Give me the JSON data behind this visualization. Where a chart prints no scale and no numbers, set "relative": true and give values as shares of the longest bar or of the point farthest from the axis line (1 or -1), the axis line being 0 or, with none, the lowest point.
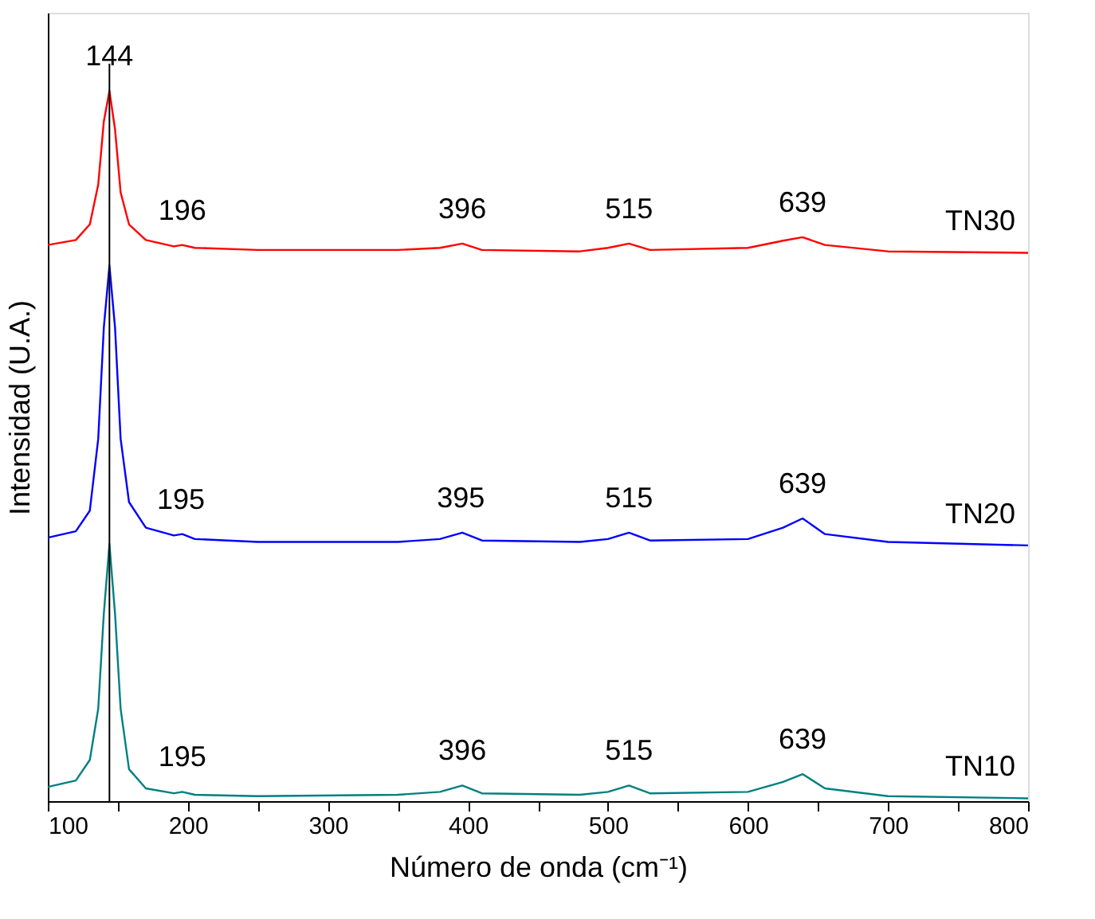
{
  "chart_data": {
    "type": "line",
    "relative": true,
    "xlabel": "Número de onda (cm⁻¹)",
    "ylabel": "Intensidad (U.A.)",
    "xlim": [
      100,
      800
    ],
    "xticks": [
      100,
      {
        "value": 150,
        "label": null
      },
      200,
      {
        "value": 250,
        "label": null
      },
      300,
      {
        "value": 350,
        "label": null
      },
      400,
      {
        "value": 450,
        "label": null
      },
      500,
      {
        "value": 550,
        "label": null
      },
      600,
      {
        "value": 650,
        "label": null
      },
      700,
      {
        "value": 750,
        "label": null
      },
      800
    ],
    "tick_labels": "x",
    "grid": false,
    "legend": false,
    "marker": "none",
    "line_style": "solid",
    "x": [
      100,
      120,
      130,
      136,
      140,
      144,
      148,
      152,
      158,
      170,
      190,
      196,
      205,
      250,
      350,
      380,
      396,
      410,
      480,
      500,
      515,
      530,
      600,
      625,
      639,
      655,
      700,
      800
    ],
    "series": [
      {
        "name": "TN30",
        "color": "#ff0000",
        "values": [
          0.783,
          0.79,
          0.812,
          0.868,
          0.957,
          1.0,
          0.946,
          0.857,
          0.812,
          0.79,
          0.781,
          0.783,
          0.779,
          0.776,
          0.776,
          0.779,
          0.785,
          0.776,
          0.774,
          0.779,
          0.785,
          0.776,
          0.779,
          0.789,
          0.794,
          0.783,
          0.774,
          0.772
        ]
      },
      {
        "name": "TN20",
        "color": "#0000ff",
        "values": [
          0.371,
          0.38,
          0.409,
          0.51,
          0.667,
          0.754,
          0.667,
          0.51,
          0.421,
          0.385,
          0.374,
          0.376,
          0.369,
          0.365,
          0.365,
          0.369,
          0.378,
          0.367,
          0.365,
          0.369,
          0.378,
          0.367,
          0.369,
          0.385,
          0.398,
          0.376,
          0.365,
          0.36
        ]
      },
      {
        "name": "TN10",
        "color": "#008080",
        "values": [
          0.02,
          0.029,
          0.058,
          0.13,
          0.264,
          0.362,
          0.264,
          0.13,
          0.045,
          0.018,
          0.011,
          0.013,
          0.009,
          0.007,
          0.009,
          0.013,
          0.022,
          0.011,
          0.009,
          0.013,
          0.022,
          0.011,
          0.013,
          0.027,
          0.038,
          0.018,
          0.007,
          0.004
        ]
      }
    ],
    "ref_lines": [
      {
        "axis": "x",
        "value": 144,
        "color": "#000000",
        "line_style": "solid"
      }
    ],
    "annotations": [
      {
        "text": "144",
        "x": 144,
        "y": 1.0
      },
      {
        "text": "196",
        "x": 196,
        "y": 0.783
      },
      {
        "text": "396",
        "x": 396,
        "y": 0.785
      },
      {
        "text": "515",
        "x": 515,
        "y": 0.785
      },
      {
        "text": "639",
        "x": 639,
        "y": 0.794
      },
      {
        "text": "195",
        "x": 195,
        "y": 0.376
      },
      {
        "text": "395",
        "x": 395,
        "y": 0.378
      },
      {
        "text": "515",
        "x": 515,
        "y": 0.378
      },
      {
        "text": "639",
        "x": 639,
        "y": 0.398
      },
      {
        "text": "195",
        "x": 196,
        "y": 0.013
      },
      {
        "text": "396",
        "x": 396,
        "y": 0.022
      },
      {
        "text": "515",
        "x": 515,
        "y": 0.022
      },
      {
        "text": "639",
        "x": 639,
        "y": 0.038
      }
    ]
  }
}
